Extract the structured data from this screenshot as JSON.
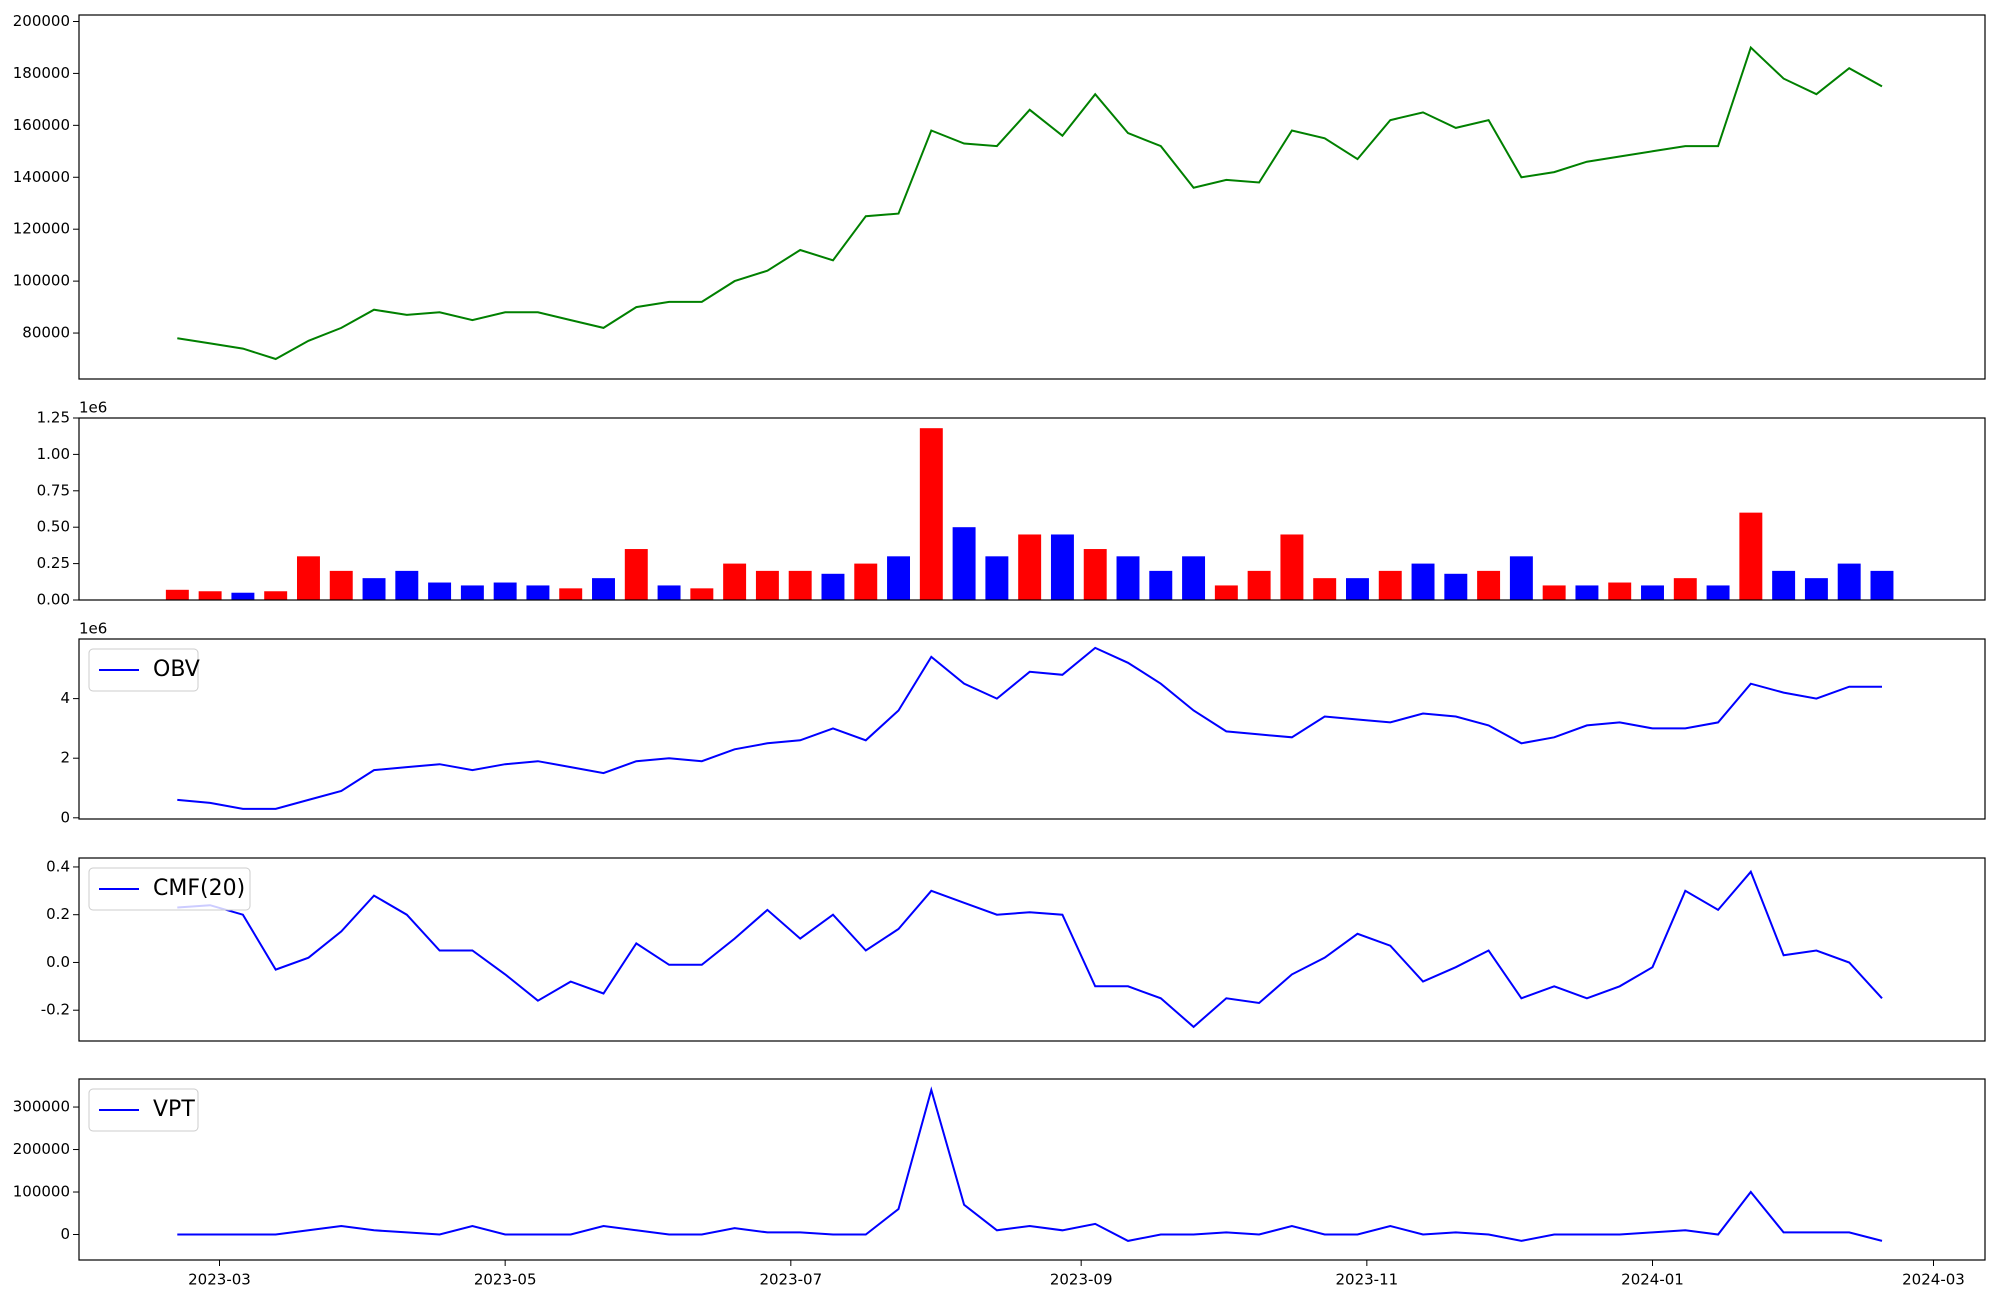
{
  "chart_data": [
    {
      "type": "line",
      "color": "#008000",
      "x": [
        "2023-02-20",
        "2023-02-27",
        "2023-03-06",
        "2023-03-13",
        "2023-03-20",
        "2023-03-27",
        "2023-04-03",
        "2023-04-10",
        "2023-04-17",
        "2023-04-24",
        "2023-05-01",
        "2023-05-08",
        "2023-05-15",
        "2023-05-22",
        "2023-05-29",
        "2023-06-05",
        "2023-06-12",
        "2023-06-19",
        "2023-06-26",
        "2023-07-03",
        "2023-07-10",
        "2023-07-17",
        "2023-07-24",
        "2023-07-31",
        "2023-08-07",
        "2023-08-14",
        "2023-08-21",
        "2023-08-28",
        "2023-09-04",
        "2023-09-11",
        "2023-09-18",
        "2023-09-25",
        "2023-10-02",
        "2023-10-09",
        "2023-10-16",
        "2023-10-23",
        "2023-10-30",
        "2023-11-06",
        "2023-11-13",
        "2023-11-20",
        "2023-11-27",
        "2023-12-04",
        "2023-12-11",
        "2023-12-18",
        "2023-12-25",
        "2024-01-01",
        "2024-01-08",
        "2024-01-15",
        "2024-01-22",
        "2024-01-29",
        "2024-02-05",
        "2024-02-12",
        "2024-02-19"
      ],
      "values": [
        78000,
        76000,
        74000,
        70000,
        77000,
        82000,
        89000,
        87000,
        88000,
        85000,
        88000,
        88000,
        85000,
        82000,
        90000,
        92000,
        92000,
        100000,
        104000,
        112000,
        108000,
        125000,
        126000,
        158000,
        153000,
        152000,
        166000,
        156000,
        172000,
        157000,
        152000,
        136000,
        139000,
        138000,
        158000,
        155000,
        147000,
        162000,
        165000,
        159000,
        162000,
        140000,
        142000,
        146000,
        148000,
        150000,
        152000,
        152000,
        190000,
        178000,
        172000,
        182000,
        175000
      ],
      "ylim": [
        62300,
        202500
      ],
      "yticks": [
        80000,
        100000,
        120000,
        140000,
        160000,
        180000,
        200000
      ]
    },
    {
      "type": "bar",
      "offset_label": "1e6",
      "values": [
        0.07,
        0.06,
        0.05,
        0.06,
        0.3,
        0.2,
        0.15,
        0.2,
        0.12,
        0.1,
        0.12,
        0.1,
        0.08,
        0.15,
        0.35,
        0.1,
        0.08,
        0.25,
        0.2,
        0.2,
        0.18,
        0.25,
        0.3,
        1.18,
        0.5,
        0.3,
        0.45,
        0.45,
        0.35,
        0.3,
        0.2,
        0.3,
        0.1,
        0.2,
        0.45,
        0.15,
        0.15,
        0.2,
        0.25,
        0.18,
        0.2,
        0.3,
        0.1,
        0.1,
        0.12,
        0.1,
        0.15,
        0.1,
        0.6,
        0.2,
        0.15,
        0.25,
        0.2
      ],
      "colors": [
        "red",
        "red",
        "blue",
        "red",
        "red",
        "red",
        "blue",
        "blue",
        "blue",
        "blue",
        "blue",
        "blue",
        "red",
        "blue",
        "red",
        "blue",
        "red",
        "red",
        "red",
        "red",
        "blue",
        "red",
        "blue",
        "red",
        "blue",
        "blue",
        "red",
        "blue",
        "red",
        "blue",
        "blue",
        "blue",
        "red",
        "red",
        "red",
        "red",
        "blue",
        "red",
        "blue",
        "blue",
        "red",
        "blue",
        "red",
        "blue",
        "red",
        "blue",
        "red",
        "blue",
        "red",
        "blue",
        "blue",
        "blue",
        "blue"
      ],
      "ylim": [
        0,
        1.25
      ],
      "yticks": [
        {
          "value": 0,
          "label": "0.00"
        },
        0.25,
        {
          "value": 0.5,
          "label": "0.50"
        },
        0.75,
        {
          "value": 1,
          "label": "1.00"
        },
        1.25
      ]
    },
    {
      "type": "line",
      "offset_label": "1e6",
      "legend": "upper left",
      "series": [
        {
          "name": "OBV",
          "color": "#0000ff",
          "values": [
            0.6,
            0.5,
            0.3,
            0.3,
            0.6,
            0.9,
            1.6,
            1.7,
            1.8,
            1.6,
            1.8,
            1.9,
            1.7,
            1.5,
            1.9,
            2.0,
            1.9,
            2.3,
            2.5,
            2.6,
            3.0,
            2.6,
            3.6,
            5.4,
            4.5,
            4.0,
            4.9,
            4.8,
            5.7,
            5.2,
            4.5,
            3.6,
            2.9,
            2.8,
            2.7,
            3.4,
            3.3,
            3.2,
            3.5,
            3.4,
            3.1,
            2.5,
            2.7,
            3.1,
            3.2,
            3.0,
            3.0,
            3.2,
            4.5,
            4.2,
            4.0,
            4.4,
            4.4
          ]
        }
      ],
      "ylim": [
        -0.04,
        6.0
      ],
      "yticks": [
        0,
        2,
        4
      ]
    },
    {
      "type": "line",
      "legend": "upper left",
      "series": [
        {
          "name": "CMF(20)",
          "color": "#0000ff",
          "values": [
            0.23,
            0.24,
            0.2,
            -0.03,
            0.02,
            0.13,
            0.28,
            0.2,
            0.05,
            0.05,
            -0.05,
            -0.16,
            -0.08,
            -0.13,
            0.08,
            -0.01,
            -0.01,
            0.1,
            0.22,
            0.1,
            0.2,
            0.05,
            0.14,
            0.3,
            0.25,
            0.2,
            0.21,
            0.2,
            -0.1,
            -0.1,
            -0.15,
            -0.27,
            -0.15,
            -0.17,
            -0.05,
            0.02,
            0.12,
            0.07,
            -0.08,
            -0.02,
            0.05,
            -0.15,
            -0.1,
            -0.15,
            -0.1,
            -0.02,
            0.3,
            0.22,
            0.38,
            0.03,
            0.05,
            0.0,
            -0.15
          ]
        }
      ],
      "ylim": [
        -0.329,
        0.4375
      ],
      "yticks": [
        -0.2,
        {
          "value": 0,
          "label": "0.0"
        },
        0.2,
        0.4
      ]
    },
    {
      "type": "line",
      "legend": "upper left",
      "series": [
        {
          "name": "VPT",
          "color": "#0000ff",
          "values": [
            0,
            0,
            0,
            0,
            10000,
            20000,
            10000,
            5000,
            0,
            20000,
            0,
            0,
            0,
            20000,
            10000,
            0,
            0,
            15000,
            5000,
            5000,
            0,
            0,
            60000,
            340000,
            70000,
            10000,
            20000,
            10000,
            25000,
            -15000,
            0,
            0,
            5000,
            0,
            20000,
            0,
            0,
            20000,
            0,
            5000,
            0,
            -15000,
            0,
            0,
            0,
            5000,
            10000,
            0,
            100000,
            5000,
            5000,
            5000,
            -15000
          ]
        }
      ],
      "ylim": [
        -60000,
        366000
      ],
      "yticks": [
        0,
        100000,
        200000,
        300000
      ],
      "xlim": [
        "2023-01-30",
        "2024-03-12"
      ],
      "xticks": [
        {
          "value": "2023-03-01",
          "label": "2023-03"
        },
        {
          "value": "2023-05-01",
          "label": "2023-05"
        },
        {
          "value": "2023-07-01",
          "label": "2023-07"
        },
        {
          "value": "2023-09-01",
          "label": "2023-09"
        },
        {
          "value": "2023-11-01",
          "label": "2023-11"
        },
        {
          "value": "2024-01-01",
          "label": "2024-01"
        },
        {
          "value": "2024-03-01",
          "label": "2024-03"
        }
      ]
    }
  ]
}
